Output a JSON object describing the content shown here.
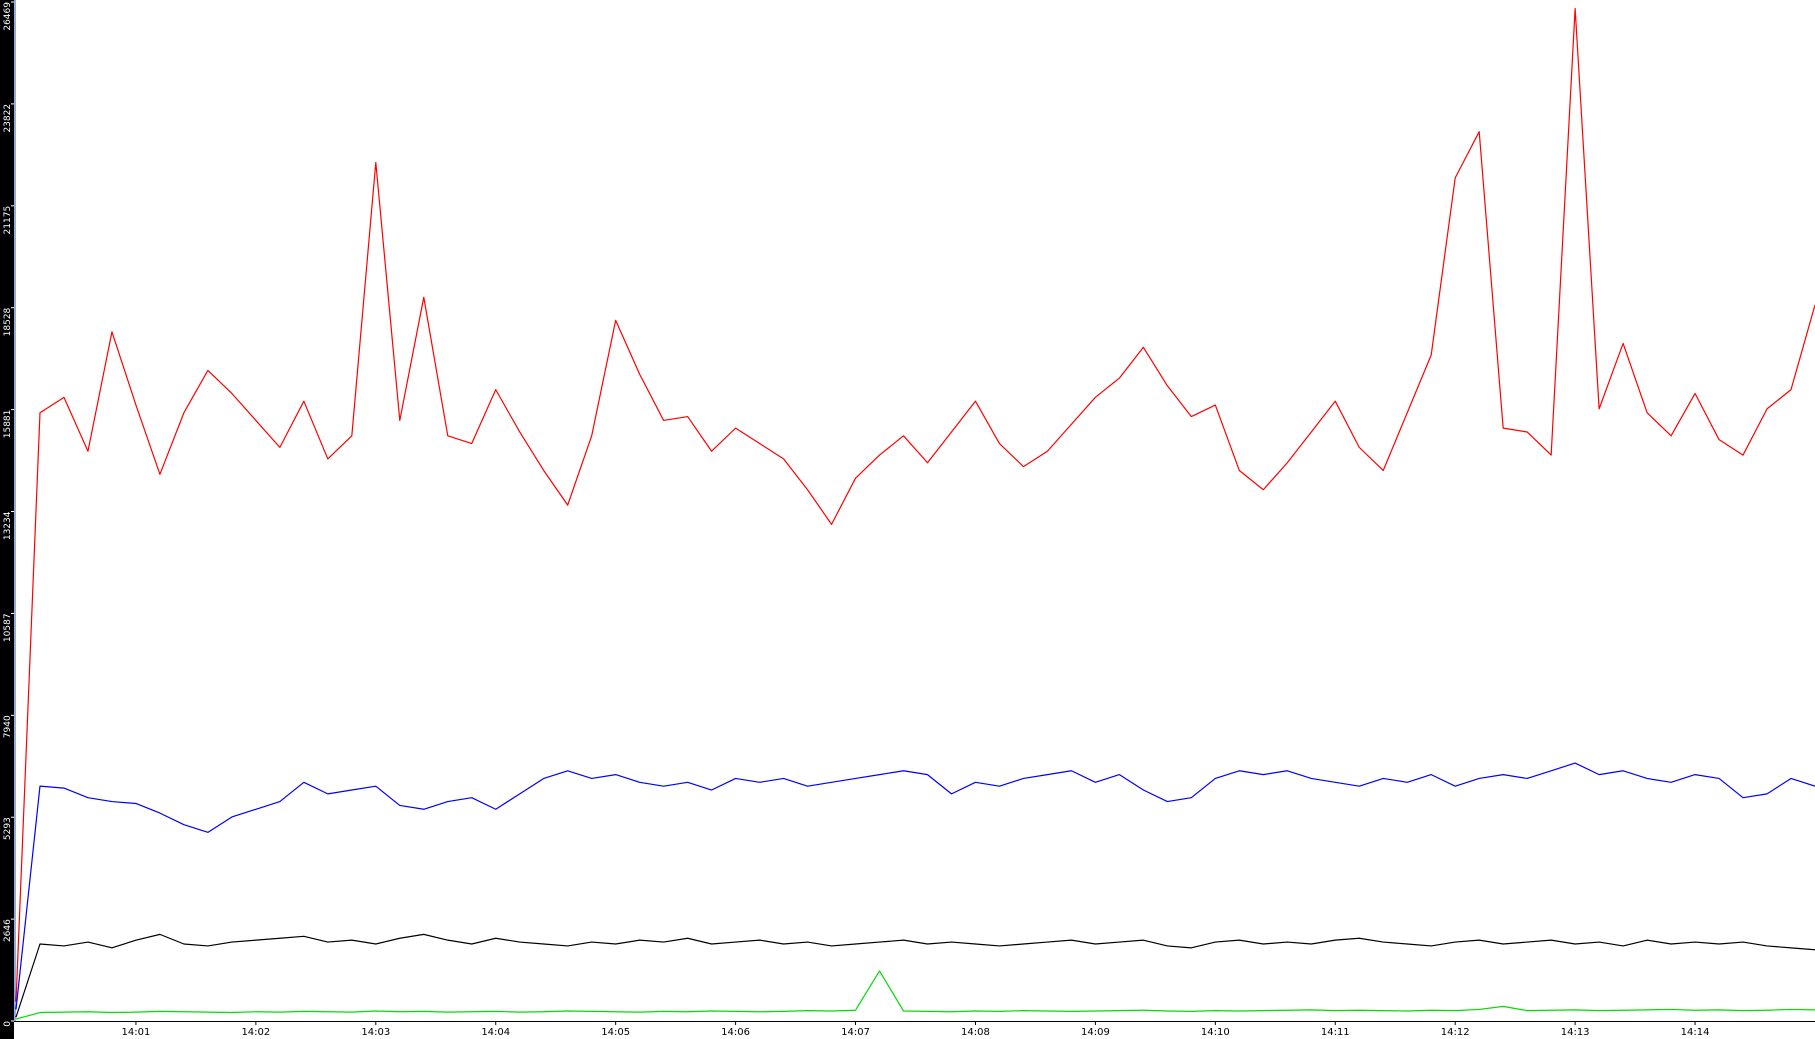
{
  "chart_data": {
    "type": "line",
    "grid": false,
    "xlim": [
      0,
      15
    ],
    "xticks": [
      {
        "value": 1,
        "label": "14:01"
      },
      {
        "value": 2,
        "label": "14:02"
      },
      {
        "value": 3,
        "label": "14:03"
      },
      {
        "value": 4,
        "label": "14:04"
      },
      {
        "value": 5,
        "label": "14:05"
      },
      {
        "value": 6,
        "label": "14:06"
      },
      {
        "value": 7,
        "label": "14:07"
      },
      {
        "value": 8,
        "label": "14:08"
      },
      {
        "value": 9,
        "label": "14:09"
      },
      {
        "value": 10,
        "label": "14:10"
      },
      {
        "value": 11,
        "label": "14:11"
      },
      {
        "value": 12,
        "label": "14:12"
      },
      {
        "value": 13,
        "label": "14:13"
      },
      {
        "value": 14,
        "label": "14:14"
      }
    ],
    "ylim": [
      0,
      26469
    ],
    "yticks": [
      0,
      2646,
      5293,
      7940,
      10587,
      13234,
      15881,
      18528,
      21175,
      23822,
      26469
    ],
    "x": [
      0,
      0.2,
      0.4,
      0.6,
      0.8,
      1,
      1.2,
      1.4,
      1.6,
      1.8,
      2,
      2.2,
      2.4,
      2.6,
      2.8,
      3,
      3.2,
      3.4,
      3.6,
      3.8,
      4,
      4.2,
      4.4,
      4.6,
      4.8,
      5,
      5.2,
      5.4,
      5.6,
      5.8,
      6,
      6.2,
      6.4,
      6.6,
      6.8,
      7,
      7.2,
      7.4,
      7.6,
      7.8,
      8,
      8.2,
      8.4,
      8.6,
      8.8,
      9,
      9.2,
      9.4,
      9.6,
      9.8,
      10,
      10.2,
      10.4,
      10.6,
      10.8,
      11,
      11.2,
      11.4,
      11.6,
      11.8,
      12,
      12.2,
      12.4,
      12.6,
      12.8,
      13,
      13.2,
      13.4,
      13.6,
      13.8,
      14,
      14.2,
      14.4,
      14.6,
      14.8,
      15
    ],
    "series": [
      {
        "color": "#ff0000",
        "values": [
          500,
          15800,
          16200,
          14800,
          17900,
          16000,
          14200,
          15800,
          16900,
          16300,
          15600,
          14900,
          16100,
          14600,
          15200,
          22300,
          15600,
          18800,
          15200,
          15000,
          16400,
          15300,
          14300,
          13400,
          15200,
          18200,
          16800,
          15600,
          15700,
          14800,
          15400,
          15000,
          14600,
          13800,
          12900,
          14100,
          14700,
          15200,
          14500,
          15300,
          16100,
          15000,
          14400,
          14800,
          15500,
          16200,
          16700,
          17500,
          16500,
          15700,
          16000,
          14300,
          13800,
          14500,
          15300,
          16100,
          14900,
          14300,
          15800,
          17300,
          21900,
          23100,
          15400,
          15300,
          14700,
          26300,
          15900,
          17600,
          15800,
          15200,
          16300,
          15100,
          14700,
          15900,
          16400,
          18600
        ]
      },
      {
        "color": "#0000ff",
        "values": [
          300,
          6100,
          6050,
          5800,
          5700,
          5650,
          5400,
          5100,
          4900,
          5300,
          5500,
          5700,
          6200,
          5900,
          6000,
          6100,
          5600,
          5500,
          5700,
          5800,
          5500,
          5900,
          6300,
          6500,
          6300,
          6400,
          6200,
          6100,
          6200,
          6000,
          6300,
          6200,
          6300,
          6100,
          6200,
          6300,
          6400,
          6500,
          6400,
          5900,
          6200,
          6100,
          6300,
          6400,
          6500,
          6200,
          6400,
          6000,
          5700,
          5800,
          6300,
          6500,
          6400,
          6500,
          6300,
          6200,
          6100,
          6300,
          6200,
          6400,
          6100,
          6300,
          6400,
          6300,
          6500,
          6700,
          6400,
          6500,
          6300,
          6200,
          6400,
          6300,
          5800,
          5900,
          6300,
          6100
        ]
      },
      {
        "color": "#000000",
        "values": [
          100,
          2000,
          1950,
          2050,
          1900,
          2100,
          2250,
          2000,
          1950,
          2050,
          2100,
          2150,
          2200,
          2050,
          2100,
          2000,
          2150,
          2250,
          2100,
          2000,
          2150,
          2050,
          2000,
          1950,
          2050,
          2000,
          2100,
          2050,
          2150,
          2000,
          2050,
          2100,
          2000,
          2050,
          1950,
          2000,
          2050,
          2100,
          2000,
          2050,
          2000,
          1950,
          2000,
          2050,
          2100,
          2000,
          2050,
          2100,
          1950,
          1900,
          2050,
          2100,
          2000,
          2050,
          2000,
          2100,
          2150,
          2050,
          2000,
          1950,
          2050,
          2100,
          2000,
          2050,
          2100,
          2000,
          2050,
          1950,
          2100,
          2000,
          2050,
          2000,
          2050,
          1950,
          1900,
          1850
        ]
      },
      {
        "color": "#00dd00",
        "values": [
          50,
          220,
          230,
          240,
          220,
          230,
          250,
          240,
          230,
          220,
          240,
          230,
          250,
          240,
          230,
          260,
          240,
          250,
          230,
          240,
          250,
          230,
          240,
          260,
          250,
          240,
          230,
          250,
          240,
          260,
          250,
          240,
          250,
          270,
          260,
          280,
          1300,
          260,
          250,
          240,
          260,
          250,
          270,
          260,
          250,
          260,
          270,
          280,
          260,
          250,
          270,
          260,
          270,
          280,
          290,
          270,
          280,
          270,
          260,
          280,
          270,
          300,
          380,
          270,
          280,
          290,
          270,
          280,
          290,
          300,
          280,
          290,
          270,
          280,
          300,
          290
        ]
      }
    ]
  }
}
